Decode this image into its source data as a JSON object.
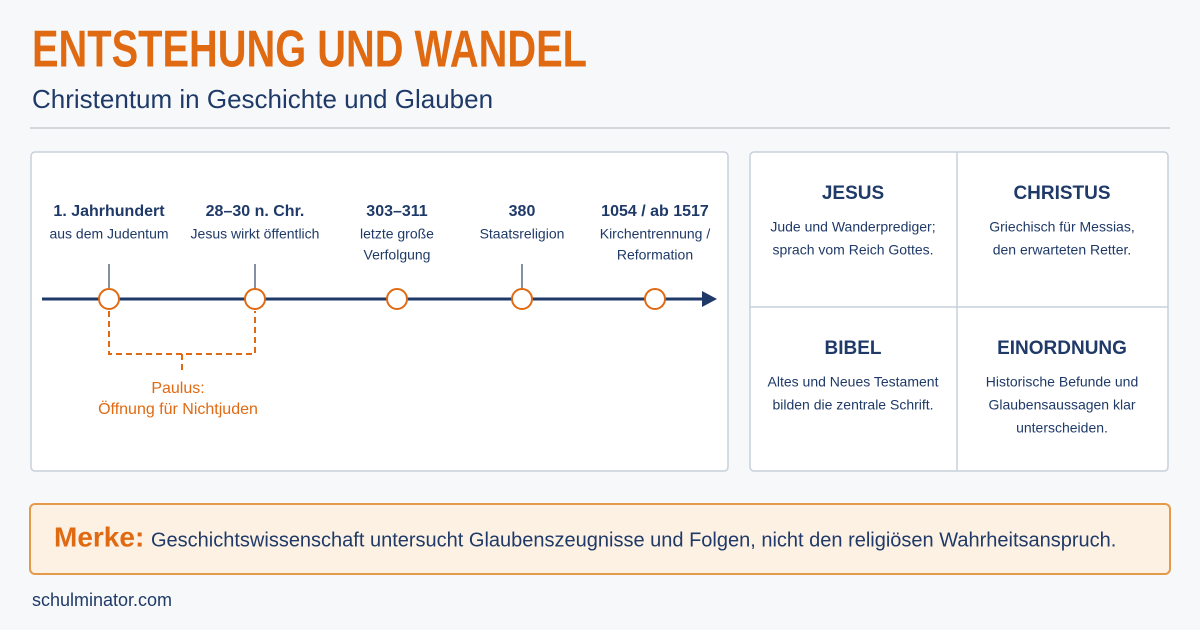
{
  "header": {
    "title": "ENTSTEHUNG UND WANDEL",
    "subtitle": "Christentum in Geschichte und Glauben"
  },
  "timeline": {
    "events": [
      {
        "date": "1. Jahrhundert",
        "lines": [
          "aus dem Judentum"
        ]
      },
      {
        "date": "28–30 n. Chr.",
        "lines": [
          "Jesus wirkt öffentlich"
        ]
      },
      {
        "date": "303–311",
        "lines": [
          "letzte große",
          "Verfolgung"
        ]
      },
      {
        "date": "380",
        "lines": [
          "Staatsreligion"
        ]
      },
      {
        "date": "1054 / ab 1517",
        "lines": [
          "Kirchentrennung /",
          "Reformation"
        ]
      }
    ],
    "annotation": {
      "lines": [
        "Paulus:",
        "Öffnung für Nichtjuden"
      ]
    }
  },
  "cards": [
    {
      "title": "JESUS",
      "lines": [
        "Jude und Wanderprediger;",
        "sprach vom Reich Gottes."
      ]
    },
    {
      "title": "CHRISTUS",
      "lines": [
        "Griechisch für Messias,",
        "den erwarteten Retter."
      ]
    },
    {
      "title": "BIBEL",
      "lines": [
        "Altes und Neues Testament",
        "bilden die zentrale Schrift."
      ]
    },
    {
      "title": "EINORDNUNG",
      "lines": [
        "Historische Befunde und",
        "Glaubensaussagen klar",
        "unterscheiden."
      ]
    }
  ],
  "note": {
    "label": "Merke:",
    "text": "Geschichtswissenschaft untersucht Glaubenszeugnisse und Folgen, nicht den religiösen Wahrheitsanspruch."
  },
  "footer": "schulminator.com"
}
